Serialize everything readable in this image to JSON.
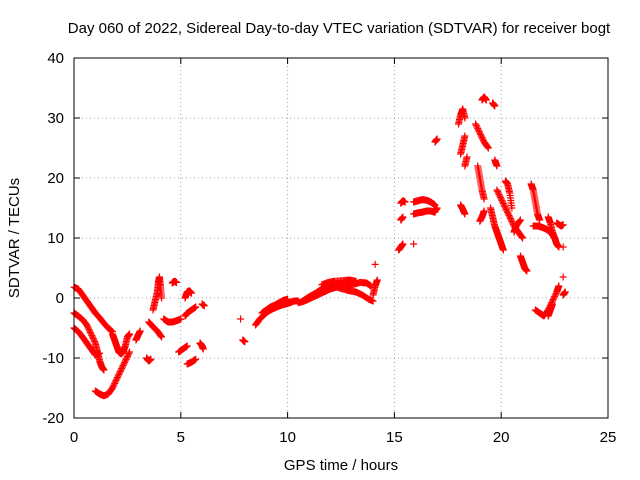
{
  "chart_data": {
    "type": "scatter",
    "title": "Day 060 of 2022, Sidereal Day-to-day VTEC variation (SDTVAR) for receiver bogt",
    "xlabel": "GPS time / hours",
    "ylabel": "SDTVAR / TECUs",
    "xlim": [
      0,
      25
    ],
    "ylim": [
      -20,
      40
    ],
    "xticks": [
      0,
      5,
      10,
      15,
      20,
      25
    ],
    "yticks": [
      -20,
      -10,
      0,
      10,
      20,
      30,
      40
    ],
    "grid": true,
    "marker": "+",
    "color": "#ff0000",
    "series": [
      {
        "name": "SDTVAR",
        "segments": [
          [
            [
              0.0,
              1.8
            ],
            [
              0.2,
              1.5
            ],
            [
              0.4,
              0.5
            ],
            [
              0.6,
              -0.5
            ],
            [
              0.8,
              -1.5
            ],
            [
              1.0,
              -2.5
            ],
            [
              1.2,
              -3.3
            ],
            [
              1.4,
              -4.2
            ],
            [
              1.6,
              -5.0
            ],
            [
              1.8,
              -5.6
            ]
          ],
          [
            [
              0.0,
              -2.5
            ],
            [
              0.2,
              -3.0
            ],
            [
              0.4,
              -3.6
            ],
            [
              0.6,
              -4.5
            ],
            [
              0.8,
              -6.0
            ],
            [
              1.0,
              -7.5
            ],
            [
              1.1,
              -9.0
            ],
            [
              1.2,
              -10.5
            ],
            [
              1.3,
              -11.5
            ],
            [
              1.4,
              -12.0
            ]
          ],
          [
            [
              0.0,
              -5.0
            ],
            [
              0.2,
              -5.6
            ],
            [
              0.4,
              -6.5
            ],
            [
              0.6,
              -7.5
            ],
            [
              0.8,
              -8.5
            ],
            [
              1.0,
              -9.5
            ],
            [
              1.2,
              -9.2
            ]
          ],
          [
            [
              1.0,
              -15.5
            ],
            [
              1.2,
              -16.0
            ],
            [
              1.4,
              -16.3
            ],
            [
              1.6,
              -16.0
            ],
            [
              1.8,
              -15.0
            ],
            [
              2.0,
              -13.5
            ],
            [
              2.2,
              -12.0
            ],
            [
              2.4,
              -10.5
            ],
            [
              2.6,
              -9.0
            ]
          ],
          [
            [
              1.8,
              -6.0
            ],
            [
              1.9,
              -7.0
            ],
            [
              2.0,
              -8.0
            ],
            [
              2.1,
              -9.0
            ],
            [
              2.2,
              -9.3
            ],
            [
              2.3,
              -9.0
            ],
            [
              2.4,
              -8.0
            ],
            [
              2.5,
              -6.5
            ],
            [
              2.6,
              -6.0
            ]
          ],
          [
            [
              2.9,
              -7.0
            ],
            [
              3.0,
              -6.2
            ],
            [
              3.1,
              -5.5
            ]
          ],
          [
            [
              3.4,
              -10.0
            ],
            [
              3.5,
              -10.5
            ],
            [
              3.6,
              -10.2
            ]
          ],
          [
            [
              3.5,
              -4.0
            ],
            [
              3.7,
              -4.8
            ],
            [
              3.9,
              -5.5
            ],
            [
              4.1,
              -6.5
            ]
          ],
          [
            [
              3.7,
              -2.0
            ],
            [
              3.8,
              -0.5
            ],
            [
              3.9,
              1.0
            ],
            [
              3.95,
              2.5
            ],
            [
              4.0,
              3.5
            ],
            [
              4.05,
              2.0
            ],
            [
              4.1,
              0.0
            ]
          ],
          [
            [
              4.2,
              -3.5
            ],
            [
              4.4,
              -4.0
            ],
            [
              4.6,
              -4.0
            ],
            [
              4.8,
              -3.8
            ],
            [
              5.0,
              -3.5
            ]
          ],
          [
            [
              4.6,
              2.5
            ],
            [
              4.7,
              2.8
            ],
            [
              4.8,
              2.6
            ]
          ],
          [
            [
              4.9,
              -9.0
            ],
            [
              5.1,
              -8.5
            ],
            [
              5.3,
              -8.0
            ]
          ],
          [
            [
              5.2,
              0.0
            ],
            [
              5.3,
              1.0
            ],
            [
              5.4,
              1.2
            ],
            [
              5.5,
              0.8
            ]
          ],
          [
            [
              5.2,
              -3.0
            ],
            [
              5.3,
              -2.5
            ],
            [
              5.5,
              -2.0
            ],
            [
              5.7,
              -1.5
            ]
          ],
          [
            [
              5.3,
              -11.0
            ],
            [
              5.5,
              -10.7
            ],
            [
              5.7,
              -10.2
            ]
          ],
          [
            [
              5.9,
              -7.5
            ],
            [
              6.0,
              -8.0
            ],
            [
              6.05,
              -8.5
            ]
          ],
          [
            [
              6.0,
              -1.0
            ],
            [
              6.1,
              -1.3
            ]
          ],
          [
            [
              7.8,
              -3.5
            ]
          ],
          [
            [
              7.9,
              -7.0
            ],
            [
              8.0,
              -7.3
            ]
          ],
          [
            [
              8.5,
              -4.5
            ],
            [
              8.7,
              -3.5
            ],
            [
              8.9,
              -2.8
            ],
            [
              9.1,
              -2.2
            ],
            [
              9.3,
              -1.8
            ],
            [
              9.5,
              -1.5
            ],
            [
              9.7,
              -1.2
            ],
            [
              9.9,
              -1.0
            ],
            [
              10.1,
              -0.8
            ],
            [
              10.3,
              -0.5
            ],
            [
              10.5,
              -0.5
            ]
          ],
          [
            [
              8.8,
              -2.5
            ],
            [
              9.0,
              -2.0
            ],
            [
              9.2,
              -1.5
            ],
            [
              9.4,
              -1.2
            ],
            [
              9.6,
              -0.8
            ],
            [
              9.8,
              -0.4
            ],
            [
              10.0,
              -0.2
            ]
          ],
          [
            [
              10.7,
              -0.5
            ],
            [
              11.0,
              0.2
            ],
            [
              11.3,
              0.8
            ],
            [
              11.6,
              1.5
            ],
            [
              11.9,
              2.0
            ],
            [
              12.2,
              2.3
            ],
            [
              12.5,
              2.2
            ],
            [
              12.8,
              2.0
            ],
            [
              13.1,
              2.3
            ],
            [
              13.4,
              2.6
            ],
            [
              13.7,
              2.5
            ],
            [
              13.9,
              2.0
            ]
          ],
          [
            [
              10.5,
              -0.8
            ],
            [
              10.8,
              -0.5
            ],
            [
              11.1,
              0.0
            ],
            [
              11.4,
              0.5
            ],
            [
              11.7,
              1.0
            ],
            [
              12.0,
              1.5
            ],
            [
              12.3,
              1.8
            ],
            [
              12.6,
              1.5
            ],
            [
              12.9,
              1.2
            ],
            [
              13.2,
              1.0
            ],
            [
              13.5,
              0.5
            ],
            [
              13.8,
              -0.2
            ],
            [
              14.0,
              -0.5
            ]
          ],
          [
            [
              11.6,
              2.2
            ],
            [
              11.9,
              2.6
            ],
            [
              12.2,
              2.8
            ],
            [
              12.6,
              2.9
            ],
            [
              12.9,
              3.0
            ],
            [
              13.2,
              2.8
            ]
          ],
          [
            [
              14.0,
              0.5
            ],
            [
              14.1,
              2.0
            ],
            [
              14.2,
              3.0
            ]
          ],
          [
            [
              14.1,
              5.6
            ]
          ],
          [
            [
              15.2,
              8.0
            ],
            [
              15.3,
              8.5
            ],
            [
              15.4,
              9.0
            ]
          ],
          [
            [
              15.3,
              13.0
            ],
            [
              15.4,
              13.5
            ]
          ],
          [
            [
              15.3,
              15.8
            ],
            [
              15.4,
              16.2
            ],
            [
              15.5,
              16.0
            ]
          ],
          [
            [
              15.9,
              9.0
            ]
          ],
          [
            [
              15.9,
              14.0
            ],
            [
              16.1,
              14.2
            ],
            [
              16.3,
              14.3
            ],
            [
              16.5,
              14.5
            ],
            [
              16.7,
              14.5
            ],
            [
              16.9,
              14.3
            ]
          ],
          [
            [
              15.9,
              16.0
            ],
            [
              16.1,
              16.2
            ],
            [
              16.3,
              16.4
            ],
            [
              16.5,
              16.3
            ],
            [
              16.7,
              16.0
            ],
            [
              16.9,
              15.5
            ]
          ],
          [
            [
              16.9,
              14.5
            ],
            [
              17.0,
              15.0
            ]
          ],
          [
            [
              16.9,
              26.0
            ],
            [
              17.0,
              26.5
            ]
          ],
          [
            [
              18.1,
              15.5
            ],
            [
              18.2,
              14.8
            ],
            [
              18.3,
              14.0
            ]
          ],
          [
            [
              18.0,
              29.0
            ],
            [
              18.1,
              30.5
            ],
            [
              18.2,
              31.5
            ],
            [
              18.3,
              30.0
            ]
          ],
          [
            [
              18.1,
              24.0
            ],
            [
              18.2,
              25.5
            ],
            [
              18.3,
              27.0
            ]
          ],
          [
            [
              18.3,
              22.0
            ],
            [
              18.4,
              23.5
            ]
          ],
          [
            [
              18.8,
              29.0
            ],
            [
              19.0,
              27.5
            ],
            [
              19.2,
              26.0
            ],
            [
              19.4,
              25.0
            ]
          ],
          [
            [
              18.9,
              22.0
            ],
            [
              19.0,
              20.0
            ],
            [
              19.1,
              18.0
            ],
            [
              19.2,
              16.5
            ]
          ],
          [
            [
              19.0,
              12.8
            ],
            [
              19.1,
              13.5
            ],
            [
              19.2,
              14.5
            ]
          ],
          [
            [
              19.1,
              33.0
            ],
            [
              19.2,
              33.5
            ],
            [
              19.3,
              33.0
            ]
          ],
          [
            [
              19.5,
              15.0
            ],
            [
              19.6,
              13.5
            ],
            [
              19.7,
              12.0
            ],
            [
              19.8,
              11.0
            ],
            [
              19.9,
              10.0
            ],
            [
              20.0,
              9.0
            ],
            [
              20.1,
              8.0
            ]
          ],
          [
            [
              19.6,
              32.5
            ],
            [
              19.7,
              32.0
            ]
          ],
          [
            [
              19.7,
              23.0
            ],
            [
              19.8,
              22.0
            ]
          ],
          [
            [
              19.8,
              18.0
            ],
            [
              20.0,
              16.5
            ],
            [
              20.2,
              15.0
            ],
            [
              20.4,
              13.5
            ],
            [
              20.6,
              12.0
            ],
            [
              20.8,
              11.0
            ],
            [
              21.0,
              10.0
            ]
          ],
          [
            [
              20.2,
              19.5
            ],
            [
              20.3,
              19.0
            ],
            [
              20.4,
              17.5
            ],
            [
              20.5,
              15.0
            ]
          ],
          [
            [
              20.6,
              11.0
            ],
            [
              20.7,
              12.0
            ],
            [
              20.9,
              13.0
            ]
          ],
          [
            [
              20.9,
              7.0
            ],
            [
              21.0,
              6.0
            ],
            [
              21.1,
              5.0
            ],
            [
              21.2,
              4.5
            ]
          ],
          [
            [
              21.4,
              19.0
            ],
            [
              21.5,
              18.0
            ],
            [
              21.6,
              16.0
            ],
            [
              21.7,
              14.0
            ],
            [
              21.8,
              13.0
            ]
          ],
          [
            [
              21.5,
              12.0
            ],
            [
              21.7,
              12.0
            ],
            [
              21.9,
              11.8
            ],
            [
              22.1,
              11.5
            ],
            [
              22.3,
              11.0
            ],
            [
              22.5,
              10.0
            ]
          ],
          [
            [
              21.6,
              -2.0
            ],
            [
              21.8,
              -2.5
            ],
            [
              22.0,
              -3.0
            ],
            [
              22.2,
              -2.0
            ],
            [
              22.4,
              -0.5
            ],
            [
              22.6,
              1.0
            ],
            [
              22.7,
              2.0
            ]
          ],
          [
            [
              22.2,
              -3.0
            ],
            [
              22.3,
              -2.0
            ],
            [
              22.4,
              -1.0
            ]
          ],
          [
            [
              22.2,
              13.5
            ],
            [
              22.3,
              12.5
            ],
            [
              22.4,
              11.0
            ],
            [
              22.5,
              10.0
            ],
            [
              22.6,
              9.0
            ],
            [
              22.7,
              8.5
            ]
          ],
          [
            [
              22.6,
              12.5
            ],
            [
              22.8,
              12.0
            ],
            [
              22.9,
              12.2
            ]
          ],
          [
            [
              22.9,
              8.5
            ]
          ],
          [
            [
              22.9,
              0.5
            ],
            [
              23.0,
              1.0
            ]
          ],
          [
            [
              22.9,
              3.5
            ]
          ]
        ]
      }
    ]
  }
}
